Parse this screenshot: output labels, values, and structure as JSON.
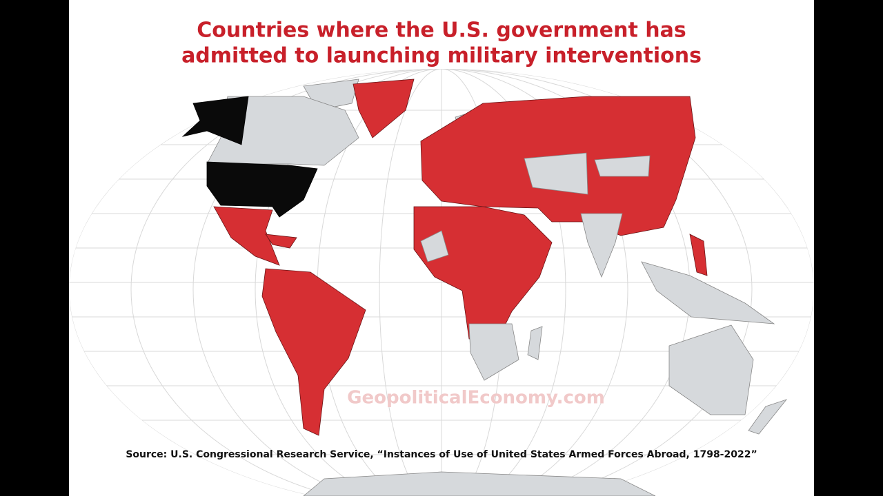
{
  "header": {
    "title_lines": [
      "Countries where the U.S. government has",
      "admitted to launching military interventions"
    ]
  },
  "watermark": "GeopoliticalEconomy.com",
  "source": "Source: U.S. Congressional Research Service, “Instances of Use of United States Armed Forces Abroad, 1798-2022”"
}
